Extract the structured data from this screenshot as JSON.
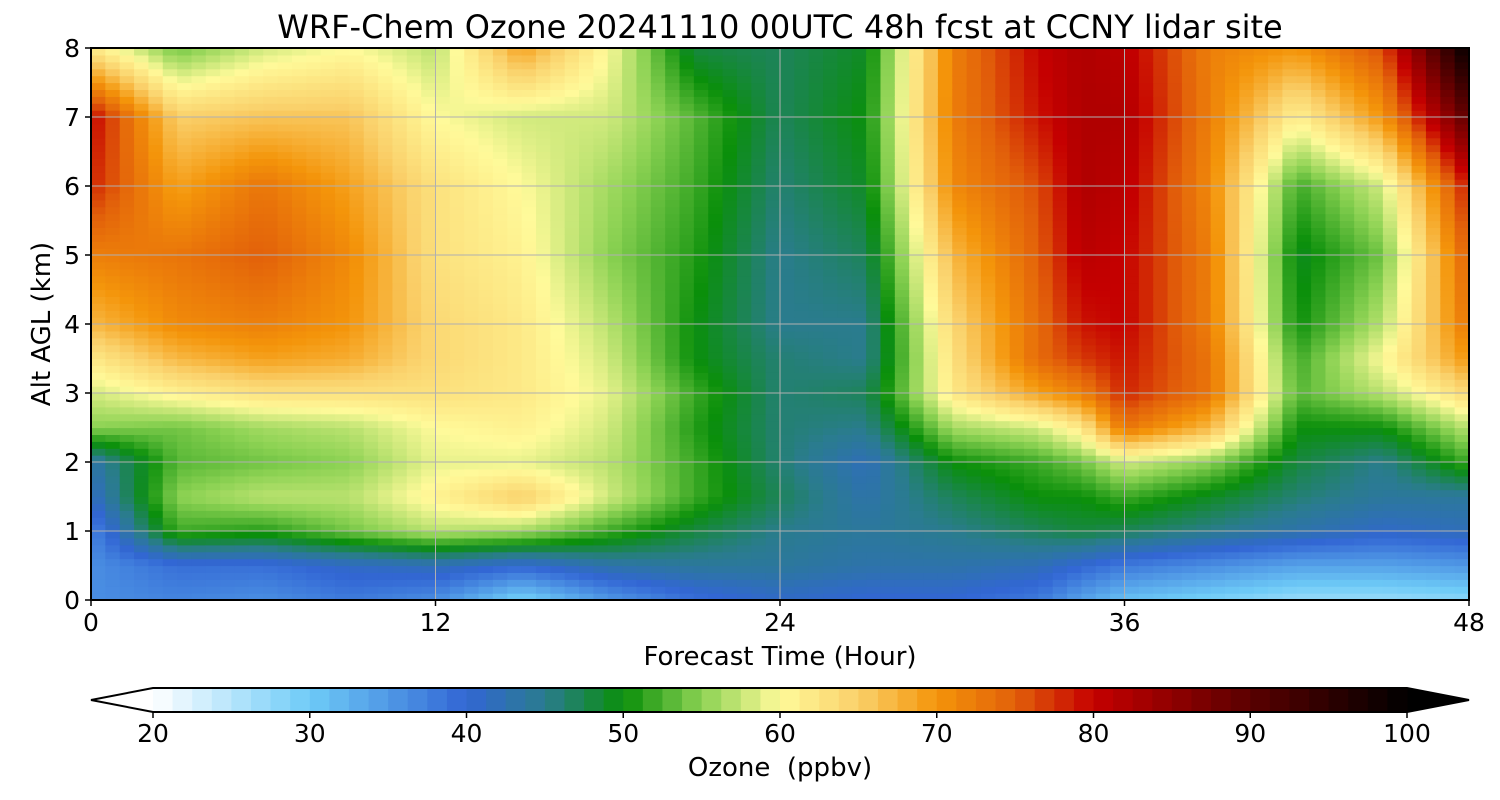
{
  "chart_data": {
    "type": "heatmap",
    "title": "WRF-Chem Ozone  20241110 00UTC 48h fcst at CCNY lidar site",
    "xlabel": "Forecast Time (Hour)",
    "ylabel": "Alt AGL (km)",
    "xlim": [
      0,
      48
    ],
    "ylim": [
      0,
      8
    ],
    "x_ticks": [
      "0",
      "12",
      "24",
      "36",
      "48"
    ],
    "y_ticks": [
      "0",
      "1",
      "2",
      "3",
      "4",
      "5",
      "6",
      "7",
      "8"
    ],
    "grid": true,
    "z_label": "Ozone  (ppbv)",
    "z_range": [
      20,
      100
    ],
    "z_ticks": [
      "20",
      "30",
      "40",
      "50",
      "60",
      "70",
      "80",
      "90",
      "100"
    ],
    "z_extend": "both",
    "colorbar_placement": "bottom",
    "colormap": [
      {
        "v": 20,
        "c": "#ffffff"
      },
      {
        "v": 30,
        "c": "#6ecbf7"
      },
      {
        "v": 40,
        "c": "#3266d4"
      },
      {
        "v": 45,
        "c": "#2a7c8e"
      },
      {
        "v": 50,
        "c": "#0a8f0a"
      },
      {
        "v": 55,
        "c": "#8cd253"
      },
      {
        "v": 60,
        "c": "#fffa9a"
      },
      {
        "v": 65,
        "c": "#fad06a"
      },
      {
        "v": 70,
        "c": "#f4950a"
      },
      {
        "v": 75,
        "c": "#e2600a"
      },
      {
        "v": 80,
        "c": "#c50000"
      },
      {
        "v": 90,
        "c": "#5a0000"
      },
      {
        "v": 100,
        "c": "#000000"
      }
    ],
    "hours": [
      0,
      3,
      6,
      9,
      12,
      15,
      18,
      21,
      24,
      27,
      30,
      33,
      34.5,
      36,
      39,
      42,
      45,
      48
    ],
    "altitudes_km": [
      0,
      0.5,
      1.0,
      1.5,
      2.0,
      2.5,
      3.0,
      3.5,
      4.0,
      5.0,
      6.0,
      7.0,
      8.0
    ],
    "ozone_ppbv": [
      [
        36,
        36,
        37,
        41,
        43,
        55,
        58,
        62,
        67,
        72,
        78,
        80,
        62
      ],
      [
        37,
        39,
        52,
        55,
        53,
        54,
        61,
        67,
        71,
        73,
        69,
        65,
        54
      ],
      [
        36,
        39,
        51,
        57,
        54,
        56,
        63,
        69,
        72,
        75,
        73,
        66,
        58
      ],
      [
        38,
        41,
        54,
        57,
        55,
        57,
        63,
        68,
        70,
        71,
        69,
        66,
        60
      ],
      [
        36,
        42,
        57,
        61,
        59,
        60,
        63,
        64,
        64,
        63,
        63,
        60,
        57
      ],
      [
        29,
        40,
        56,
        65,
        59,
        61,
        62,
        62,
        62,
        61,
        60,
        58,
        69
      ],
      [
        35,
        43,
        52,
        58,
        57,
        58,
        59,
        58,
        57,
        55,
        56,
        58,
        60
      ],
      [
        39,
        44,
        48,
        52,
        52,
        51,
        52,
        50,
        50,
        51,
        52,
        53,
        48
      ],
      [
        41,
        44,
        45,
        47,
        46,
        46,
        46,
        46,
        45,
        45,
        46,
        47,
        47
      ],
      [
        40,
        43,
        44,
        43,
        42,
        45,
        47,
        45,
        45,
        47,
        49,
        50,
        49
      ],
      [
        40,
        43,
        45,
        47,
        50,
        56,
        62,
        63,
        64,
        67,
        71,
        72,
        72
      ],
      [
        38,
        42,
        47,
        50,
        52,
        58,
        69,
        74,
        74,
        75,
        76,
        79,
        80
      ],
      [
        34,
        40,
        48,
        50,
        54,
        62,
        72,
        77,
        79,
        81,
        82,
        82,
        82
      ],
      [
        31,
        38,
        47,
        52,
        58,
        73,
        78,
        79,
        80,
        80,
        81,
        82,
        81
      ],
      [
        29,
        36,
        45,
        49,
        55,
        67,
        73,
        73,
        72,
        72,
        71,
        72,
        72
      ],
      [
        27,
        34,
        43,
        46,
        48,
        50,
        53,
        52,
        50,
        49,
        52,
        61,
        70
      ],
      [
        27,
        34,
        41,
        44,
        45,
        50,
        57,
        60,
        57,
        54,
        58,
        70,
        76
      ],
      [
        28,
        35,
        42,
        44,
        52,
        57,
        64,
        70,
        73,
        75,
        79,
        90,
        100
      ]
    ]
  }
}
